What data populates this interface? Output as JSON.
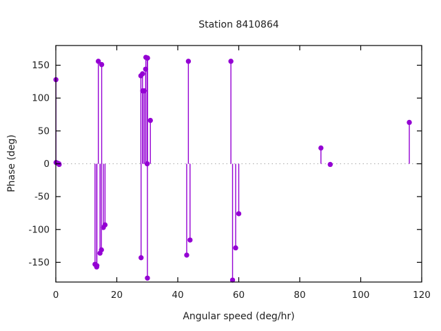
{
  "colors": {
    "series": "#9400d3",
    "axis": "#000000",
    "zero_line": "#a8a8a8",
    "text": "#202020",
    "background": "#ffffff"
  },
  "chart_data": {
    "type": "scatter",
    "style": "stem-impulses-with-points",
    "title": "Station 8410864",
    "xlabel": "Angular speed (deg/hr)",
    "ylabel": "Phase (deg)",
    "xlim": [
      0,
      120
    ],
    "ylim": [
      -180,
      180
    ],
    "x_ticks": [
      0,
      20,
      40,
      60,
      80,
      100,
      120
    ],
    "y_ticks": [
      -150,
      -100,
      -50,
      0,
      50,
      100,
      150
    ],
    "grid": false,
    "zero_line": "dotted",
    "legend": "none",
    "series": [
      {
        "name": "phase",
        "marker": "filled-circle",
        "points": [
          [
            0.041,
            128
          ],
          [
            0.082,
            2
          ],
          [
            0.544,
            1
          ],
          [
            1.016,
            0
          ],
          [
            1.098,
            -1
          ],
          [
            12.854,
            -153
          ],
          [
            13.399,
            -157
          ],
          [
            13.471,
            -155
          ],
          [
            13.943,
            156
          ],
          [
            14.497,
            -136
          ],
          [
            14.959,
            -131
          ],
          [
            15.041,
            151
          ],
          [
            15.585,
            -97
          ],
          [
            16.139,
            -93
          ],
          [
            27.895,
            134
          ],
          [
            27.968,
            -143
          ],
          [
            28.44,
            137
          ],
          [
            28.512,
            111
          ],
          [
            28.984,
            111
          ],
          [
            29.456,
            144
          ],
          [
            29.528,
            162
          ],
          [
            29.959,
            0
          ],
          [
            30.0,
            161
          ],
          [
            30.041,
            -174
          ],
          [
            30.082,
            161
          ],
          [
            31.016,
            66
          ],
          [
            42.927,
            -139
          ],
          [
            43.476,
            156
          ],
          [
            44.025,
            -116
          ],
          [
            57.424,
            156
          ],
          [
            57.968,
            -177
          ],
          [
            58.984,
            -128
          ],
          [
            60.0,
            -76
          ],
          [
            86.952,
            24
          ],
          [
            90.0,
            -1
          ],
          [
            115.936,
            63
          ]
        ]
      }
    ]
  }
}
